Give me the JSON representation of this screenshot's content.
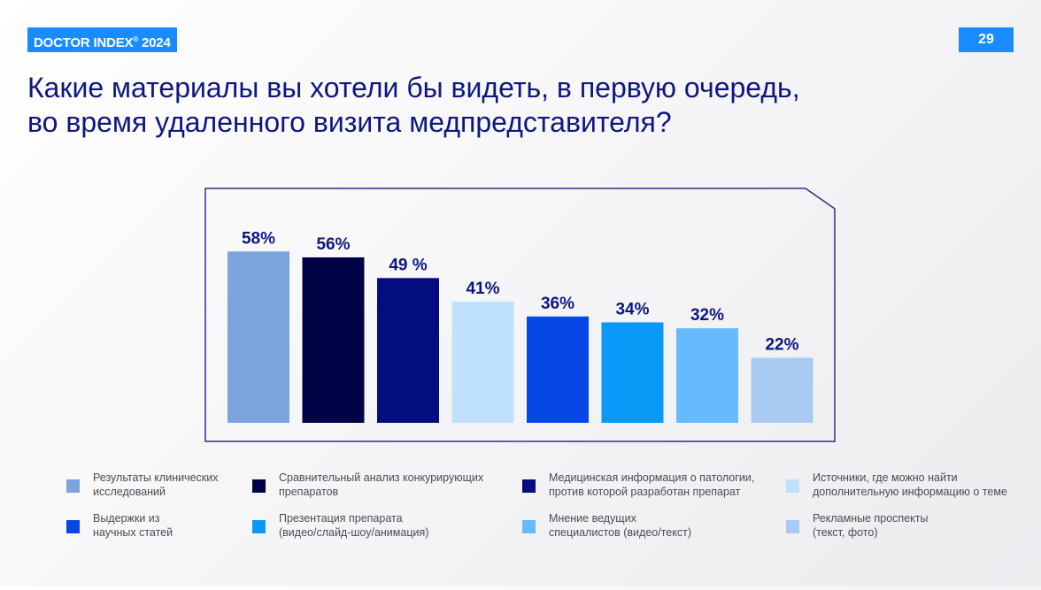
{
  "header": {
    "brand_name": "DOCTOR INDEX",
    "brand_mark": "®",
    "brand_year": " 2024",
    "page_number": "29",
    "title_line1": "Какие материалы вы хотели бы видеть, в первую очередь,",
    "title_line2": "во время удаленного визита медпредставителя?"
  },
  "colors": {
    "accent": "#1a8cff",
    "title": "#0d1780",
    "frame": "#2a2f8c"
  },
  "chart_data": {
    "type": "bar",
    "title": "Какие материалы вы хотели бы видеть, в первую очередь, во время удаленного визита медпредставителя?",
    "ylim": [
      0,
      60
    ],
    "categories": [
      "Результаты клинических\nисследований",
      "Сравнительный анализ конкурирующих\nпрепаратов",
      "Медицинская информация о патологии,\nпротив которой разработан препарат",
      "Источники, где можно найти\nдополнительную информацию о теме",
      "Выдержки из\nнаучных статей",
      "Презентация препарата\n(видео/слайд-шоу/анимация)",
      "Мнение ведущих\nспециалистов (видео/текст)",
      "Рекламные проспекты\n(текст, фото)"
    ],
    "values": [
      58,
      56,
      49,
      41,
      36,
      34,
      32,
      22
    ],
    "labels": [
      "58%",
      "56%",
      "49 %",
      "41%",
      "36%",
      "34%",
      "32%",
      "22%"
    ],
    "colors": [
      "#7ba4de",
      "#000446",
      "#030d7e",
      "#bfe1fc",
      "#0646e4",
      "#0a99f7",
      "#66bbff",
      "#a9cbf3"
    ]
  },
  "legend": {
    "order": [
      0,
      1,
      2,
      3,
      4,
      5,
      6,
      7
    ]
  }
}
